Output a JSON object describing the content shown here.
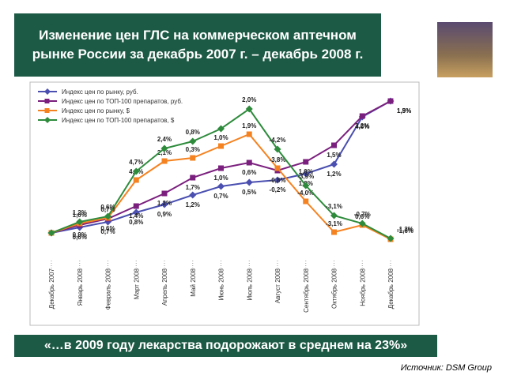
{
  "slide": {
    "title": "Изменение цен ГЛС на коммерческом аптечном рынке России за декабрь 2007 г. – декабрь 2008 г.",
    "banner": "«…в  2009 году лекарства подорожают в среднем на 23%»",
    "source": "Источник: DSM Group"
  },
  "chart_data": {
    "type": "line",
    "categories": [
      "Декабрь 2007",
      "Январь 2008",
      "Февраль 2008",
      "Март 2008",
      "Апрель 2008",
      "Май 2008",
      "Июнь 2008",
      "Июль 2008",
      "Август 2008",
      "Сентябрь 2008",
      "Октябрь 2008",
      "Ноябрь 2008",
      "Декабрь 2008"
    ],
    "ylim": [
      95,
      137
    ],
    "series": [
      {
        "name": "Индекс цен по рынку, руб.",
        "color": "#4a4fb0",
        "marker": "diamond",
        "values": [
          100,
          101.4,
          102.8,
          105.2,
          107.2,
          109.6,
          111.8,
          112.8,
          113.4,
          115,
          117.4,
          129.4,
          133.4
        ],
        "point_labels": [
          null,
          "0,6%",
          "0,7%",
          "0,8%",
          "0,9%",
          "1,2%",
          "0,7%",
          "0,5%",
          "-0,2%",
          "1,0%",
          "1,2%",
          "4,6%",
          "1,5%"
        ]
      },
      {
        "name": "Индекс цен по ТОП-100 препаратов, руб.",
        "color": "#7b1f7e",
        "marker": "square",
        "values": [
          100,
          102,
          103.6,
          106.8,
          110,
          114,
          116.4,
          117.8,
          115.8,
          118,
          122.2,
          129.6,
          133.4
        ],
        "point_labels": [
          null,
          "0,9%",
          "0,6%",
          "1,4%",
          "1,2%",
          "1,7%",
          "1,0%",
          "0,6%",
          "-0,8%",
          "1,0%",
          "1,5%",
          "3,2%",
          "1,9%"
        ]
      },
      {
        "name": "Индекс цен по рынку, $",
        "color": "#f58220",
        "marker": "square",
        "values": [
          100,
          102.4,
          103.8,
          113.4,
          118.2,
          119,
          122,
          125,
          116.4,
          108,
          100.2,
          102,
          98.4
        ],
        "point_labels": [
          null,
          "1,0%",
          "0,7%",
          "4,2%",
          "2,1%",
          "0,3%",
          "1,0%",
          "1,9%",
          "-3,8%",
          "-4,0%",
          "-3,1%",
          "0,6%",
          "-1,6%"
        ]
      },
      {
        "name": "Индекс цен по ТОП-100 препаратов, $",
        "color": "#2e8b3c",
        "marker": "diamond",
        "values": [
          100,
          102.8,
          104.2,
          115.6,
          121.4,
          123.2,
          126.4,
          131.4,
          121.2,
          112,
          104.4,
          102.4,
          98.6
        ],
        "point_labels": [
          null,
          "1,2%",
          "0,6%",
          "4,7%",
          "2,4%",
          "0,8%",
          null,
          "2,0%",
          "-4,2%",
          "-3,9%",
          "-3,1%",
          "-0,7%",
          "-1,3%"
        ]
      }
    ]
  }
}
